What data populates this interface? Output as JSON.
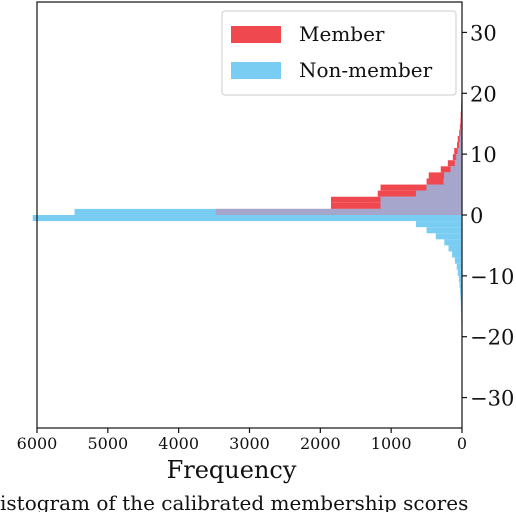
{
  "chart_data": {
    "type": "bar",
    "orientation": "horizontal",
    "xlabel": "Frequency",
    "x_direction": "reversed",
    "xlim": [
      6000,
      0
    ],
    "ylim": [
      -35,
      35
    ],
    "x_ticks": [
      "6000",
      "5000",
      "4000",
      "3000",
      "2000",
      "1000",
      "0"
    ],
    "x_tick_values": [
      6000,
      5000,
      4000,
      3000,
      2000,
      1000,
      0
    ],
    "y_ticks": [
      "30",
      "20",
      "10",
      "0",
      "−10",
      "−20",
      "−30"
    ],
    "y_tick_values": [
      30,
      20,
      10,
      0,
      -10,
      -20,
      -30
    ],
    "y_axis_side": "right",
    "bin_width": 1,
    "grid": false,
    "legend_position": "top-right",
    "series": [
      {
        "name": "Member",
        "color": "#f0484f",
        "bins": [
          [
            0,
            3480
          ],
          [
            1,
            1850
          ],
          [
            2,
            1850
          ],
          [
            3,
            1190
          ],
          [
            4,
            1150
          ],
          [
            5,
            500
          ],
          [
            6,
            470
          ],
          [
            7,
            300
          ],
          [
            8,
            200
          ],
          [
            9,
            130
          ],
          [
            10,
            110
          ],
          [
            11,
            70
          ],
          [
            12,
            60
          ],
          [
            13,
            40
          ],
          [
            14,
            30
          ],
          [
            15,
            22
          ],
          [
            16,
            18
          ],
          [
            17,
            14
          ],
          [
            18,
            11
          ],
          [
            19,
            9
          ],
          [
            20,
            7
          ],
          [
            21,
            6
          ],
          [
            22,
            5
          ],
          [
            23,
            4
          ],
          [
            24,
            3
          ],
          [
            25,
            3
          ],
          [
            26,
            2
          ],
          [
            27,
            2
          ],
          [
            28,
            2
          ],
          [
            29,
            1
          ],
          [
            30,
            1
          ],
          [
            31,
            1
          ],
          [
            32,
            1
          ],
          [
            33,
            1
          ]
        ]
      },
      {
        "name": "Non-member",
        "color": "#79cdf2",
        "bins": [
          [
            0,
            5470
          ],
          [
            -1,
            6060
          ],
          [
            -2,
            650
          ],
          [
            -3,
            500
          ],
          [
            -4,
            370
          ],
          [
            -5,
            250
          ],
          [
            -6,
            190
          ],
          [
            -7,
            140
          ],
          [
            -8,
            100
          ],
          [
            -9,
            75
          ],
          [
            -10,
            60
          ],
          [
            -11,
            45
          ],
          [
            -12,
            35
          ],
          [
            -13,
            27
          ],
          [
            -14,
            22
          ],
          [
            -15,
            18
          ],
          [
            -16,
            15
          ],
          [
            -17,
            12
          ],
          [
            -18,
            10
          ],
          [
            -19,
            8
          ],
          [
            -20,
            7
          ],
          [
            -21,
            6
          ],
          [
            -22,
            5
          ],
          [
            -23,
            4
          ],
          [
            -24,
            4
          ],
          [
            -25,
            3
          ],
          [
            -26,
            3
          ],
          [
            -27,
            2
          ],
          [
            -28,
            2
          ],
          [
            -29,
            2
          ],
          [
            -30,
            1
          ],
          [
            -31,
            1
          ],
          [
            -32,
            1
          ],
          [
            1,
            1150
          ],
          [
            2,
            1150
          ],
          [
            3,
            650
          ],
          [
            4,
            500
          ],
          [
            5,
            260
          ],
          [
            6,
            250
          ],
          [
            7,
            160
          ],
          [
            8,
            100
          ],
          [
            9,
            80
          ],
          [
            10,
            60
          ],
          [
            11,
            40
          ],
          [
            12,
            30
          ],
          [
            13,
            20
          ],
          [
            14,
            15
          ],
          [
            15,
            10
          ]
        ]
      }
    ],
    "overlap_color": "#a6a6cc"
  },
  "caption": "istogram of the calibrated membership scores"
}
